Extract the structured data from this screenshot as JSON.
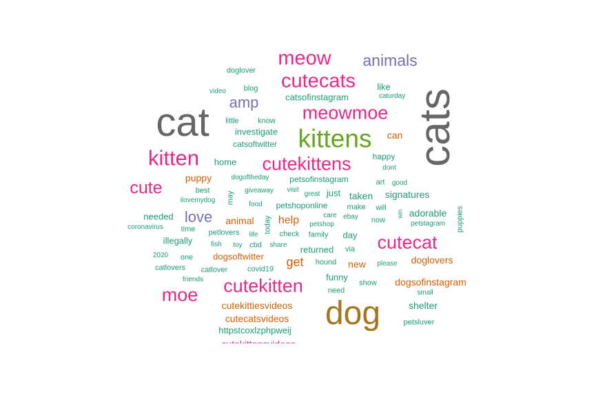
{
  "palette": {
    "gray": "#666666",
    "pink": "#e7298a",
    "green": "#1b9e77",
    "orange": "#d95f02",
    "purple": "#7570b3",
    "lime": "#66a61e",
    "gold": "#a6761d"
  },
  "words": [
    {
      "text": "cat",
      "size": 58,
      "color": "gray"
    },
    {
      "text": "cats",
      "size": 62,
      "color": "gray",
      "rot": true
    },
    {
      "text": "dog",
      "size": 48,
      "color": "gold"
    },
    {
      "text": "kittens",
      "size": 37,
      "color": "lime"
    },
    {
      "text": "meow",
      "size": 29,
      "color": "pink"
    },
    {
      "text": "cutecats",
      "size": 29,
      "color": "pink"
    },
    {
      "text": "meowmoe",
      "size": 27,
      "color": "pink"
    },
    {
      "text": "animals",
      "size": 23,
      "color": "purple"
    },
    {
      "text": "amp",
      "size": 22,
      "color": "purple"
    },
    {
      "text": "kitten",
      "size": 31,
      "color": "pink"
    },
    {
      "text": "cutekittens",
      "size": 27,
      "color": "pink"
    },
    {
      "text": "cute",
      "size": 25,
      "color": "pink"
    },
    {
      "text": "cutecat",
      "size": 27,
      "color": "pink"
    },
    {
      "text": "cutekitten",
      "size": 27,
      "color": "pink"
    },
    {
      "text": "moe",
      "size": 27,
      "color": "pink"
    },
    {
      "text": "love",
      "size": 22,
      "color": "purple"
    },
    {
      "text": "help",
      "size": 16,
      "color": "orange"
    },
    {
      "text": "get",
      "size": 18,
      "color": "orange"
    },
    {
      "text": "new",
      "size": 14,
      "color": "orange"
    },
    {
      "text": "can",
      "size": 14,
      "color": "orange"
    },
    {
      "text": "puppy",
      "size": 14,
      "color": "orange"
    },
    {
      "text": "animal",
      "size": 14,
      "color": "orange"
    },
    {
      "text": "doglovers",
      "size": 14,
      "color": "orange"
    },
    {
      "text": "dogsofinstagram",
      "size": 14,
      "color": "orange"
    },
    {
      "text": "dogsoftwitter",
      "size": 13,
      "color": "orange"
    },
    {
      "text": "cutekittiesvideos",
      "size": 14,
      "color": "orange"
    },
    {
      "text": "cutecatsvideos",
      "size": 14,
      "color": "orange"
    },
    {
      "text": "cutekittensvideos",
      "size": 14,
      "color": "pink"
    },
    {
      "text": "doglover",
      "size": 11,
      "color": "green"
    },
    {
      "text": "blog",
      "size": 11,
      "color": "green"
    },
    {
      "text": "video",
      "size": 10,
      "color": "green"
    },
    {
      "text": "like",
      "size": 13,
      "color": "green"
    },
    {
      "text": "caturday",
      "size": 10,
      "color": "green"
    },
    {
      "text": "catsofinstagram",
      "size": 13,
      "color": "green"
    },
    {
      "text": "little",
      "size": 11,
      "color": "green"
    },
    {
      "text": "know",
      "size": 11,
      "color": "green"
    },
    {
      "text": "investigate",
      "size": 13,
      "color": "green"
    },
    {
      "text": "catsoftwitter",
      "size": 12,
      "color": "green"
    },
    {
      "text": "home",
      "size": 13,
      "color": "green"
    },
    {
      "text": "happy",
      "size": 12,
      "color": "green"
    },
    {
      "text": "dont",
      "size": 10,
      "color": "green"
    },
    {
      "text": "dogoftheday",
      "size": 10,
      "color": "green"
    },
    {
      "text": "petsofinstagram",
      "size": 12,
      "color": "green"
    },
    {
      "text": "art",
      "size": 11,
      "color": "green"
    },
    {
      "text": "good",
      "size": 10,
      "color": "green"
    },
    {
      "text": "best",
      "size": 11,
      "color": "green"
    },
    {
      "text": "may",
      "size": 11,
      "color": "green",
      "rot": true
    },
    {
      "text": "giveaway",
      "size": 10,
      "color": "green"
    },
    {
      "text": "visit",
      "size": 10,
      "color": "green"
    },
    {
      "text": "great",
      "size": 10,
      "color": "green"
    },
    {
      "text": "just",
      "size": 13,
      "color": "green"
    },
    {
      "text": "taken",
      "size": 14,
      "color": "green"
    },
    {
      "text": "signatures",
      "size": 14,
      "color": "green"
    },
    {
      "text": "ilovemydog",
      "size": 10,
      "color": "green"
    },
    {
      "text": "food",
      "size": 10,
      "color": "green"
    },
    {
      "text": "petshoponline",
      "size": 12,
      "color": "green"
    },
    {
      "text": "make",
      "size": 11,
      "color": "green"
    },
    {
      "text": "will",
      "size": 11,
      "color": "green"
    },
    {
      "text": "win",
      "size": 9,
      "color": "green",
      "rot": true
    },
    {
      "text": "adorable",
      "size": 14,
      "color": "green"
    },
    {
      "text": "puppies",
      "size": 11,
      "color": "green",
      "rot": true
    },
    {
      "text": "needed",
      "size": 13,
      "color": "green"
    },
    {
      "text": "today",
      "size": 11,
      "color": "green",
      "rot": true
    },
    {
      "text": "care",
      "size": 10,
      "color": "green"
    },
    {
      "text": "ebay",
      "size": 10,
      "color": "green"
    },
    {
      "text": "now",
      "size": 11,
      "color": "green"
    },
    {
      "text": "petstagram",
      "size": 10,
      "color": "green"
    },
    {
      "text": "coronavirus",
      "size": 10,
      "color": "green"
    },
    {
      "text": "time",
      "size": 11,
      "color": "green"
    },
    {
      "text": "petshop",
      "size": 10,
      "color": "green"
    },
    {
      "text": "life",
      "size": 10,
      "color": "green"
    },
    {
      "text": "petlovers",
      "size": 11,
      "color": "green"
    },
    {
      "text": "check",
      "size": 11,
      "color": "green"
    },
    {
      "text": "family",
      "size": 11,
      "color": "green"
    },
    {
      "text": "day",
      "size": 13,
      "color": "green"
    },
    {
      "text": "illegally",
      "size": 13,
      "color": "green"
    },
    {
      "text": "fish",
      "size": 10,
      "color": "green"
    },
    {
      "text": "toy",
      "size": 10,
      "color": "green"
    },
    {
      "text": "cbd",
      "size": 11,
      "color": "green"
    },
    {
      "text": "share",
      "size": 10,
      "color": "green"
    },
    {
      "text": "returned",
      "size": 13,
      "color": "green"
    },
    {
      "text": "via",
      "size": 11,
      "color": "green"
    },
    {
      "text": "2020",
      "size": 10,
      "color": "green"
    },
    {
      "text": "one",
      "size": 11,
      "color": "green"
    },
    {
      "text": "hound",
      "size": 11,
      "color": "green"
    },
    {
      "text": "please",
      "size": 10,
      "color": "green"
    },
    {
      "text": "catlovers",
      "size": 11,
      "color": "green"
    },
    {
      "text": "catlover",
      "size": 11,
      "color": "green"
    },
    {
      "text": "covid19",
      "size": 11,
      "color": "green"
    },
    {
      "text": "friends",
      "size": 10,
      "color": "green"
    },
    {
      "text": "funny",
      "size": 13,
      "color": "green"
    },
    {
      "text": "show",
      "size": 11,
      "color": "green"
    },
    {
      "text": "need",
      "size": 11,
      "color": "green"
    },
    {
      "text": "small",
      "size": 10,
      "color": "green"
    },
    {
      "text": "shelter",
      "size": 14,
      "color": "green"
    },
    {
      "text": "petsluver",
      "size": 11,
      "color": "green"
    },
    {
      "text": "httpstcoxlzphpweij",
      "size": 13,
      "color": "green"
    }
  ]
}
